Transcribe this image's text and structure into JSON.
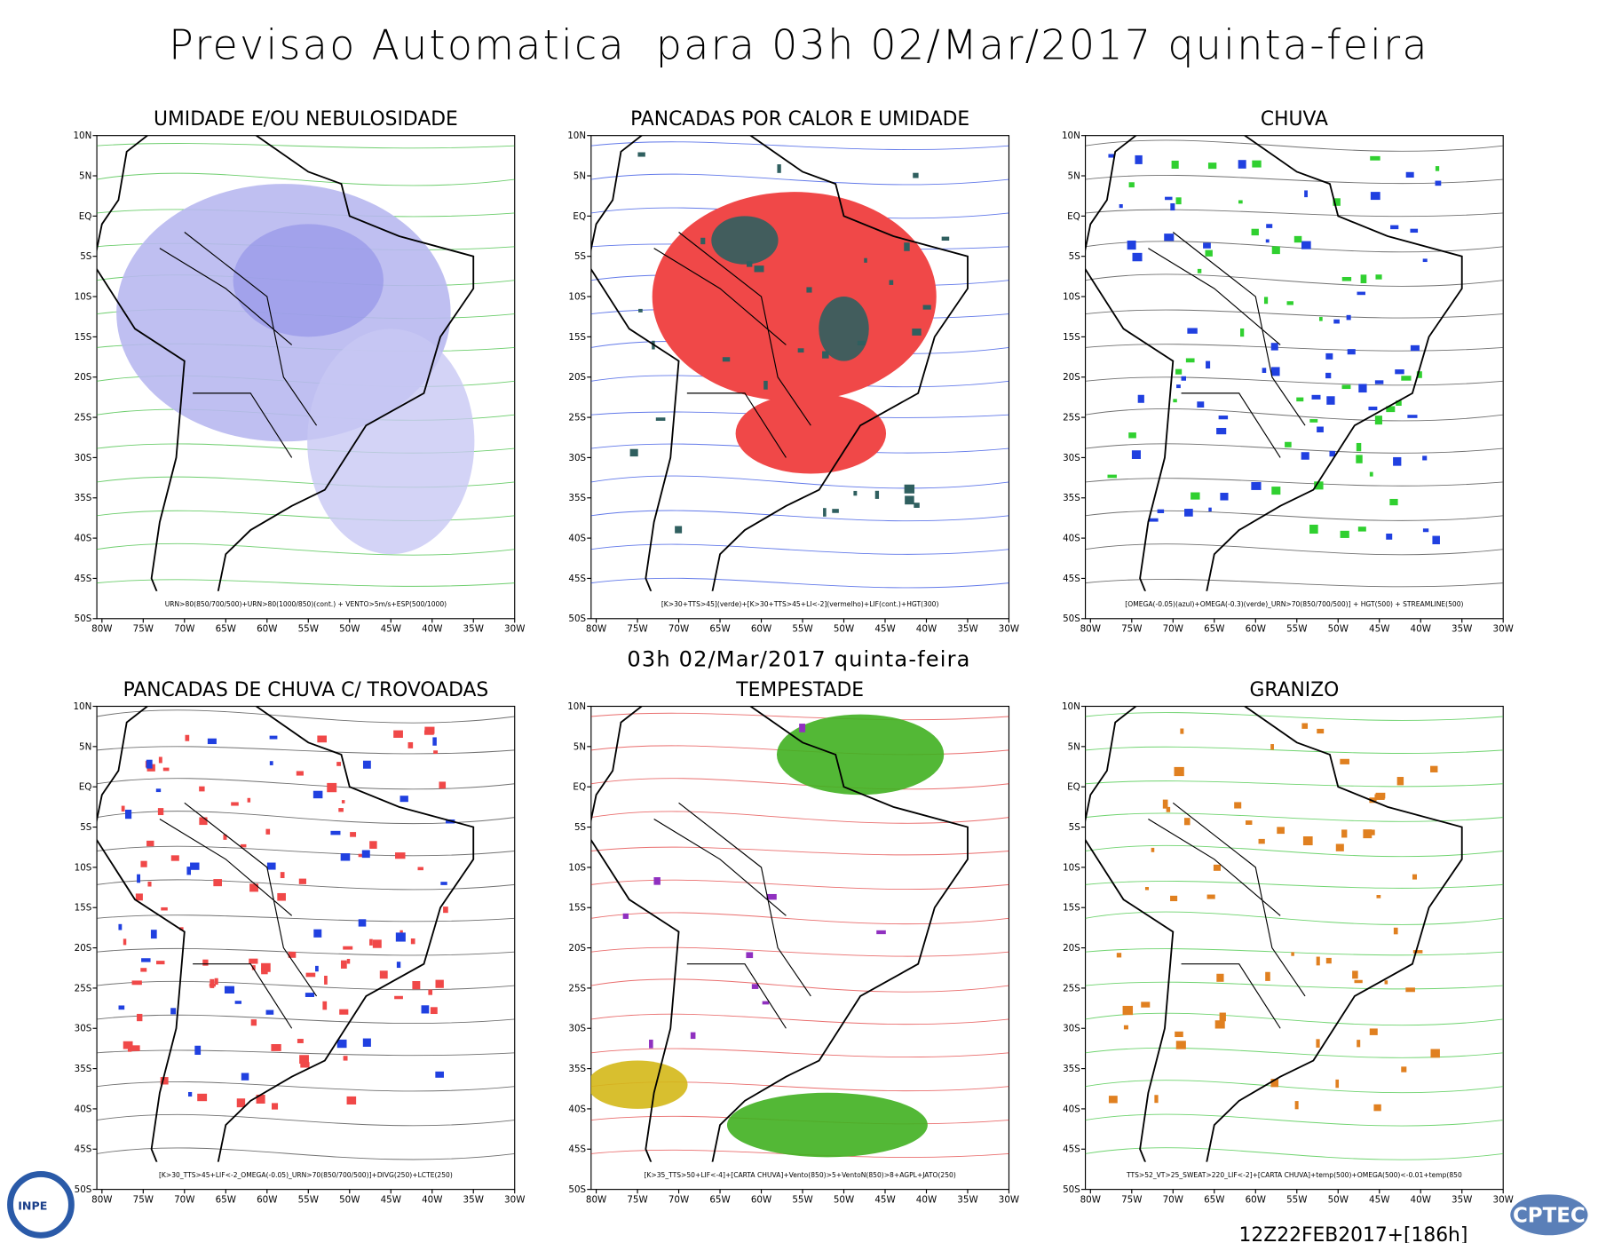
{
  "header": {
    "title": "Previsao Automatica  para 03h 02/Mar/2017 quinta-feira"
  },
  "middle_date": "03h 02/Mar/2017 quinta-feira",
  "lat_ticks": [
    "10N",
    "5N",
    "EQ",
    "5S",
    "10S",
    "15S",
    "20S",
    "25S",
    "30S",
    "35S",
    "40S",
    "45S",
    "50S"
  ],
  "lon_ticks": [
    "80W",
    "75W",
    "70W",
    "65W",
    "60W",
    "55W",
    "50W",
    "45W",
    "40W",
    "35W",
    "30W"
  ],
  "panels": [
    {
      "title": "UMIDADE E/OU NEBULOSIDADE",
      "caption": "URN>80(850/700/500)+URN>80(1000/850)(cont.) + VENTO>5m/s+ESP(500/1000)"
    },
    {
      "title": "PANCADAS POR CALOR E UMIDADE",
      "caption": "[K>30+TTS>45](verde)+[K>30+TTS>45+LI<-2](vermelho)+LIF(cont.)+HGT(300)"
    },
    {
      "title": "CHUVA",
      "caption": "[OMEGA(-0.05)(azul)+OMEGA(-0.3)(verde)_URN>70(850/700/500)] + HGT(500) + STREAMLINE(500)"
    },
    {
      "title": "PANCADAS DE CHUVA C/ TROVOADAS",
      "caption": "[K>30_TTS>45+LIF<-2_OMEGA(-0.05)_URN>70(850/700/500)]+DIVG(250)+LCTE(250)"
    },
    {
      "title": "TEMPESTADE",
      "caption": "[K>35_TTS>50+LIF<-4]+[CARTA CHUVA]+Vento(850)>5+VentoN(850)>8+AGPL+JATO(250)"
    },
    {
      "title": "GRANIZO",
      "caption": "TTS>52_VT>25_SWEAT>220_LIF<-2]+[CARTA CHUVA]+temp(500)+OMEGA(500)<-0.01+temp(850"
    }
  ],
  "footer": {
    "run": "12Z22FEB2017+[186h]",
    "logo_left": "INPE",
    "logo_right": "CPTEC"
  }
}
